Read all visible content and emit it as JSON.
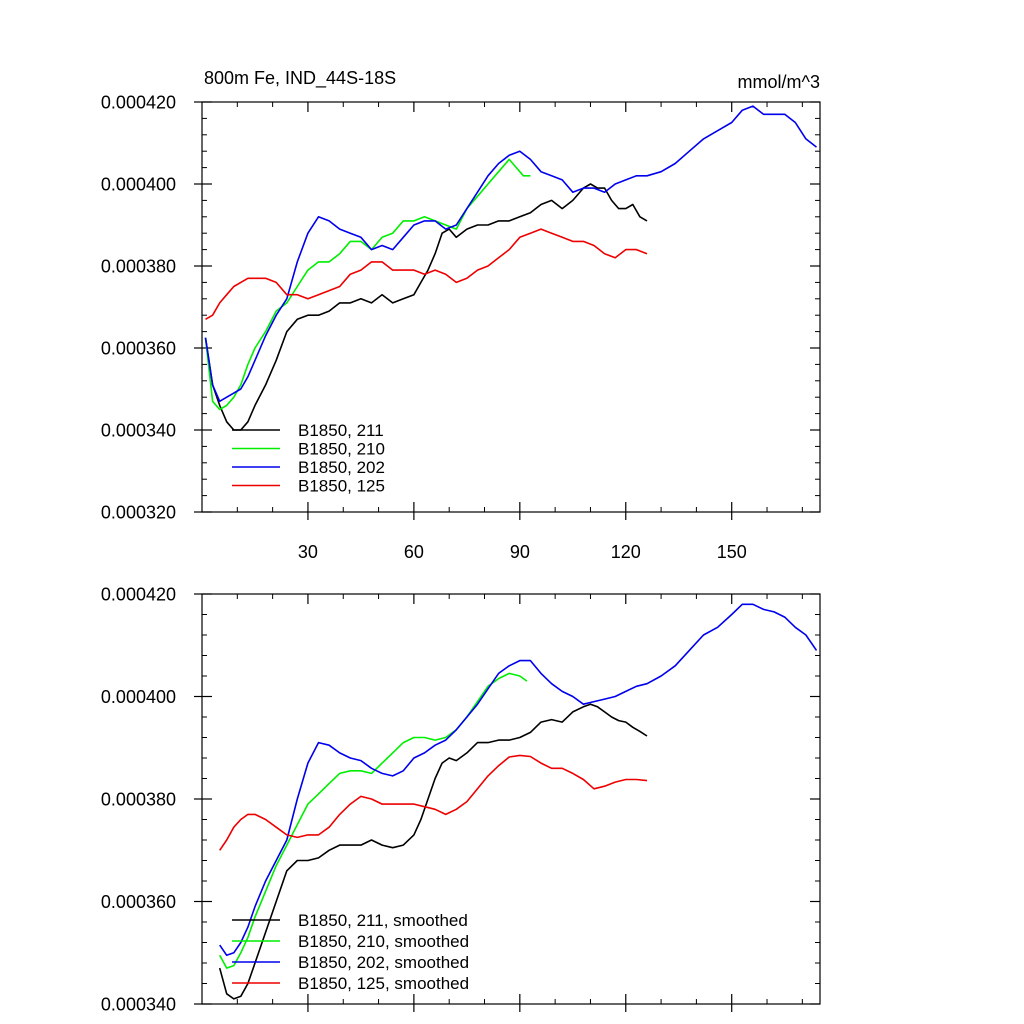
{
  "chart_data": [
    {
      "type": "line",
      "title": "800m Fe, IND_44S-18S",
      "units": "mmol/m^3",
      "xlabel": "",
      "ylabel": "",
      "xlim": [
        0,
        175
      ],
      "ylim": [
        0.00032,
        0.00042
      ],
      "yticks": [
        0.00032,
        0.00034,
        0.00036,
        0.00038,
        0.0004,
        0.00042
      ],
      "ytick_labels": [
        "0.000320",
        "0.000340",
        "0.000360",
        "0.000380",
        "0.000400",
        "0.000420"
      ],
      "xticks": [
        30,
        60,
        90,
        120,
        150
      ],
      "xtick_labels": [
        "30",
        "60",
        "90",
        "120",
        "150"
      ],
      "legend_position": "bottom-left",
      "series": [
        {
          "name": "B1850, 211",
          "color": "#000000",
          "x": [
            1,
            3,
            5,
            7,
            9,
            11,
            13,
            15,
            18,
            21,
            24,
            27,
            30,
            33,
            36,
            39,
            42,
            45,
            48,
            51,
            54,
            57,
            60,
            62,
            64,
            66,
            68,
            70,
            72,
            75,
            78,
            81,
            84,
            87,
            90,
            93,
            96,
            99,
            102,
            105,
            108,
            110,
            112,
            114,
            116,
            118,
            120,
            122,
            124,
            126
          ],
          "y": [
            0.0003625,
            0.000351,
            0.000346,
            0.000342,
            0.00034,
            0.00034,
            0.000342,
            0.000346,
            0.000351,
            0.000357,
            0.000364,
            0.000367,
            0.000368,
            0.000368,
            0.000369,
            0.000371,
            0.000371,
            0.000372,
            0.000371,
            0.000373,
            0.000371,
            0.000372,
            0.000373,
            0.000376,
            0.000379,
            0.000383,
            0.000388,
            0.000389,
            0.000387,
            0.000389,
            0.00039,
            0.00039,
            0.000391,
            0.000391,
            0.000392,
            0.000393,
            0.000395,
            0.000396,
            0.000394,
            0.000396,
            0.000399,
            0.0004,
            0.000399,
            0.000399,
            0.000396,
            0.000394,
            0.000394,
            0.000395,
            0.000392,
            0.000391
          ]
        },
        {
          "name": "B1850, 210",
          "color": "#00ee00",
          "x": [
            1,
            3,
            5,
            7,
            9,
            11,
            13,
            15,
            18,
            21,
            24,
            27,
            30,
            33,
            36,
            39,
            42,
            45,
            48,
            51,
            54,
            57,
            60,
            63,
            66,
            69,
            72,
            75,
            78,
            81,
            84,
            87,
            89,
            91,
            93
          ],
          "y": [
            0.0003625,
            0.000347,
            0.000345,
            0.000346,
            0.000348,
            0.000351,
            0.000356,
            0.00036,
            0.000364,
            0.000369,
            0.000371,
            0.000375,
            0.000379,
            0.000381,
            0.000381,
            0.000383,
            0.000386,
            0.000386,
            0.000384,
            0.000387,
            0.000388,
            0.000391,
            0.000391,
            0.000392,
            0.000391,
            0.00039,
            0.000389,
            0.000394,
            0.000397,
            0.0004,
            0.000403,
            0.000406,
            0.000404,
            0.000402,
            0.000402
          ]
        },
        {
          "name": "B1850, 202",
          "color": "#0000ee",
          "x": [
            1,
            3,
            5,
            7,
            9,
            11,
            13,
            15,
            18,
            21,
            24,
            27,
            30,
            33,
            36,
            39,
            42,
            45,
            48,
            51,
            54,
            57,
            60,
            63,
            66,
            69,
            72,
            75,
            78,
            81,
            84,
            87,
            90,
            93,
            96,
            99,
            102,
            105,
            108,
            111,
            114,
            117,
            120,
            123,
            126,
            130,
            134,
            138,
            142,
            146,
            150,
            153,
            156,
            159,
            162,
            165,
            168,
            171,
            174
          ],
          "y": [
            0.0003625,
            0.000351,
            0.000347,
            0.000348,
            0.000349,
            0.00035,
            0.000353,
            0.000357,
            0.000363,
            0.000368,
            0.000372,
            0.000381,
            0.000388,
            0.000392,
            0.000391,
            0.000389,
            0.000388,
            0.000387,
            0.000384,
            0.000385,
            0.000384,
            0.000387,
            0.00039,
            0.000391,
            0.000391,
            0.000389,
            0.00039,
            0.000394,
            0.000398,
            0.000402,
            0.000405,
            0.000407,
            0.000408,
            0.000406,
            0.000403,
            0.000402,
            0.000401,
            0.000398,
            0.000399,
            0.000399,
            0.000398,
            0.0004,
            0.000401,
            0.000402,
            0.000402,
            0.000403,
            0.000405,
            0.000408,
            0.000411,
            0.000413,
            0.000415,
            0.000418,
            0.000419,
            0.000417,
            0.000417,
            0.000417,
            0.000415,
            0.000411,
            0.000409
          ]
        },
        {
          "name": "B1850, 125",
          "color": "#ee0000",
          "x": [
            1,
            3,
            5,
            7,
            9,
            11,
            13,
            15,
            18,
            21,
            24,
            27,
            30,
            33,
            36,
            39,
            42,
            45,
            48,
            51,
            54,
            57,
            60,
            63,
            66,
            69,
            72,
            75,
            78,
            81,
            84,
            87,
            90,
            93,
            96,
            99,
            102,
            105,
            108,
            111,
            114,
            117,
            120,
            123,
            126
          ],
          "y": [
            0.000367,
            0.000368,
            0.000371,
            0.000373,
            0.000375,
            0.000376,
            0.000377,
            0.000377,
            0.000377,
            0.000376,
            0.000373,
            0.000373,
            0.000372,
            0.000373,
            0.000374,
            0.000375,
            0.000378,
            0.000379,
            0.000381,
            0.000381,
            0.000379,
            0.000379,
            0.000379,
            0.000378,
            0.000379,
            0.000378,
            0.000376,
            0.000377,
            0.000379,
            0.00038,
            0.000382,
            0.000384,
            0.000387,
            0.000388,
            0.000389,
            0.000388,
            0.000387,
            0.000386,
            0.000386,
            0.000385,
            0.000383,
            0.000382,
            0.000384,
            0.000384,
            0.000383
          ]
        }
      ]
    },
    {
      "type": "line",
      "title": "",
      "xlabel": "",
      "ylabel": "",
      "xlim": [
        0,
        175
      ],
      "ylim": [
        0.00034,
        0.00042
      ],
      "yticks": [
        0.00034,
        0.00036,
        0.00038,
        0.0004,
        0.00042
      ],
      "ytick_labels": [
        "0.000340",
        "0.000360",
        "0.000380",
        "0.000400",
        "0.000420"
      ],
      "xticks": [
        30,
        60,
        90,
        120,
        150
      ],
      "legend_position": "bottom-left",
      "series": [
        {
          "name": "B1850, 211, smoothed",
          "color": "#000000",
          "x": [
            5,
            7,
            9,
            11,
            13,
            15,
            18,
            21,
            24,
            27,
            30,
            33,
            36,
            39,
            42,
            45,
            48,
            51,
            54,
            57,
            60,
            62,
            64,
            66,
            68,
            70,
            72,
            75,
            78,
            81,
            84,
            87,
            90,
            93,
            96,
            99,
            102,
            105,
            108,
            110,
            112,
            114,
            116,
            118,
            120,
            122,
            124,
            126
          ],
          "y": [
            0.000347,
            0.000342,
            0.000341,
            0.0003415,
            0.000344,
            0.000348,
            0.000354,
            0.00036,
            0.000366,
            0.000368,
            0.000368,
            0.0003685,
            0.00037,
            0.000371,
            0.000371,
            0.000371,
            0.000372,
            0.000371,
            0.0003705,
            0.000371,
            0.000373,
            0.000376,
            0.00038,
            0.000384,
            0.000387,
            0.000388,
            0.0003875,
            0.000389,
            0.000391,
            0.000391,
            0.0003915,
            0.0003915,
            0.000392,
            0.000393,
            0.000395,
            0.0003955,
            0.000395,
            0.000397,
            0.000398,
            0.0003985,
            0.000398,
            0.000397,
            0.000396,
            0.0003953,
            0.000395,
            0.000394,
            0.0003932,
            0.0003923
          ]
        },
        {
          "name": "B1850, 210, smoothed",
          "color": "#00ee00",
          "x": [
            5,
            7,
            9,
            11,
            13,
            15,
            18,
            21,
            24,
            27,
            30,
            33,
            36,
            39,
            42,
            45,
            48,
            51,
            54,
            57,
            60,
            63,
            66,
            69,
            72,
            75,
            78,
            81,
            84,
            87,
            90,
            92
          ],
          "y": [
            0.0003495,
            0.000347,
            0.0003475,
            0.00035,
            0.000353,
            0.000357,
            0.000362,
            0.000367,
            0.000371,
            0.000375,
            0.000379,
            0.000381,
            0.000383,
            0.000385,
            0.0003855,
            0.0003855,
            0.000385,
            0.000387,
            0.000389,
            0.000391,
            0.000392,
            0.000392,
            0.0003915,
            0.000392,
            0.0003935,
            0.000396,
            0.000399,
            0.000402,
            0.0004035,
            0.0004045,
            0.000404,
            0.000403
          ]
        },
        {
          "name": "B1850, 202, smoothed",
          "color": "#0000ee",
          "x": [
            5,
            7,
            9,
            11,
            13,
            15,
            18,
            21,
            24,
            27,
            30,
            33,
            36,
            39,
            42,
            45,
            48,
            51,
            54,
            57,
            60,
            63,
            66,
            69,
            72,
            75,
            78,
            81,
            84,
            87,
            90,
            93,
            96,
            99,
            102,
            105,
            108,
            111,
            114,
            117,
            120,
            123,
            126,
            130,
            134,
            138,
            142,
            146,
            150,
            153,
            156,
            159,
            162,
            165,
            168,
            171,
            174
          ],
          "y": [
            0.0003515,
            0.0003495,
            0.00035,
            0.000352,
            0.000355,
            0.000359,
            0.000364,
            0.000368,
            0.000372,
            0.00038,
            0.000387,
            0.000391,
            0.0003905,
            0.000389,
            0.000388,
            0.0003875,
            0.000386,
            0.000385,
            0.0003845,
            0.0003855,
            0.000388,
            0.000389,
            0.0003905,
            0.0003915,
            0.0003935,
            0.000396,
            0.0003985,
            0.0004015,
            0.0004045,
            0.000406,
            0.000407,
            0.000407,
            0.0004045,
            0.0004025,
            0.000401,
            0.0004,
            0.0003985,
            0.000399,
            0.0003995,
            0.0004,
            0.000401,
            0.000402,
            0.0004025,
            0.000404,
            0.000406,
            0.000409,
            0.000412,
            0.0004135,
            0.000416,
            0.000418,
            0.000418,
            0.000417,
            0.0004165,
            0.0004155,
            0.0004135,
            0.000412,
            0.000409
          ]
        },
        {
          "name": "B1850, 125, smoothed",
          "color": "#ee0000",
          "x": [
            5,
            7,
            9,
            11,
            13,
            15,
            18,
            21,
            24,
            27,
            30,
            33,
            36,
            39,
            42,
            45,
            48,
            51,
            54,
            57,
            60,
            63,
            66,
            69,
            72,
            75,
            78,
            81,
            84,
            87,
            90,
            93,
            96,
            99,
            102,
            105,
            108,
            111,
            114,
            117,
            120,
            123,
            126
          ],
          "y": [
            0.00037,
            0.000372,
            0.0003745,
            0.000376,
            0.000377,
            0.000377,
            0.000376,
            0.0003745,
            0.000373,
            0.0003725,
            0.000373,
            0.000373,
            0.0003745,
            0.000377,
            0.000379,
            0.0003805,
            0.00038,
            0.000379,
            0.000379,
            0.000379,
            0.000379,
            0.0003785,
            0.000378,
            0.000377,
            0.000378,
            0.0003795,
            0.000382,
            0.0003845,
            0.0003865,
            0.0003882,
            0.0003885,
            0.0003883,
            0.000387,
            0.000386,
            0.000386,
            0.000385,
            0.0003838,
            0.000382,
            0.0003825,
            0.0003833,
            0.0003838,
            0.0003838,
            0.0003836
          ]
        }
      ]
    }
  ]
}
